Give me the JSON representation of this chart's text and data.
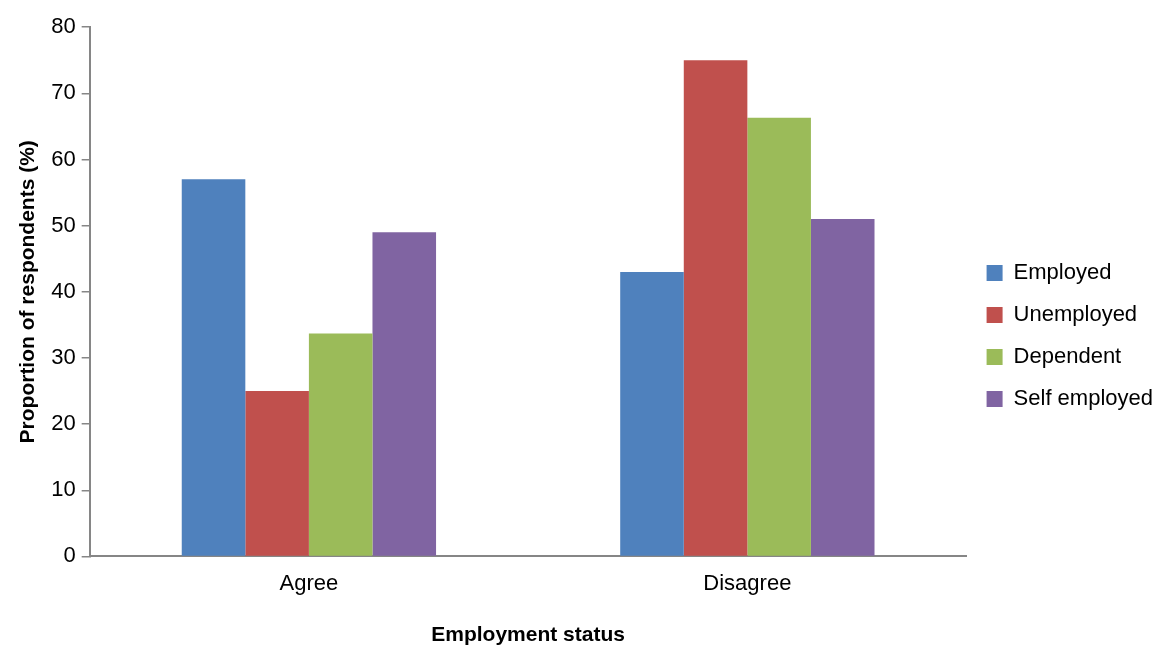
{
  "chart_data": {
    "type": "bar",
    "xlabel": "Employment status",
    "ylabel": "Proportion of respondents (%)",
    "categories": [
      "Agree",
      "Disagree"
    ],
    "series": [
      {
        "name": "Employed",
        "color": "#4f81bd",
        "values": [
          57,
          43
        ]
      },
      {
        "name": "Unemployed",
        "color": "#c0504d",
        "values": [
          25,
          75
        ]
      },
      {
        "name": "Dependent",
        "color": "#9bbb59",
        "values": [
          33.7,
          66.3
        ]
      },
      {
        "name": "Self employed",
        "color": "#8064a2",
        "values": [
          49,
          51
        ]
      }
    ],
    "ylim": [
      0,
      80
    ],
    "yticks": [
      0,
      10,
      20,
      30,
      40,
      50,
      60,
      70,
      80
    ],
    "grid": false,
    "legend": "right"
  }
}
